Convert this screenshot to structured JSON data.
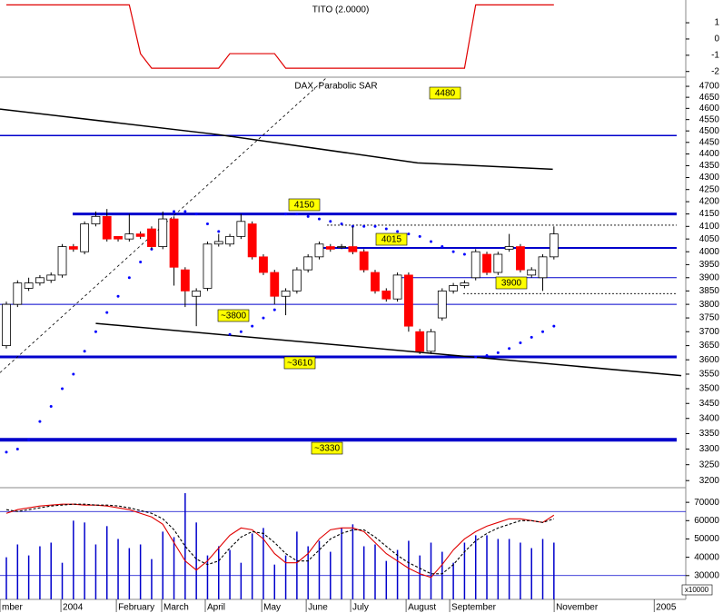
{
  "chart_data": [
    {
      "type": "line",
      "title": "TITO (2.0000)",
      "xlim": [
        -0.57,
        60.8
      ],
      "ylim": [
        -2.35,
        2.4
      ],
      "yticks": [
        1,
        0,
        -1,
        -2
      ],
      "series": [
        {
          "color": "#e00000",
          "values": [
            2.1,
            2.1,
            2.1,
            2.1,
            2.1,
            2.1,
            2.1,
            2.1,
            2.1,
            2.1,
            2.1,
            2.1,
            -0.9,
            -1.8,
            -1.8,
            -1.8,
            -1.8,
            -1.8,
            -1.8,
            -1.8,
            -0.9,
            -0.9,
            -0.9,
            -0.9,
            -0.9,
            -1.8,
            -1.8,
            -1.8,
            -1.8,
            -1.8,
            -1.8,
            -1.8,
            -1.8,
            -1.8,
            -1.8,
            -1.8,
            -1.8,
            -1.8,
            -1.8,
            -1.8,
            -1.8,
            -1.8,
            2.1,
            2.1,
            2.1,
            2.1,
            2.1,
            2.1,
            2.1,
            2.1
          ]
        }
      ]
    },
    {
      "type": "candlestick",
      "title": "DAX, Parabolic SAR",
      "xlim": [
        -0.57,
        60.8
      ],
      "ylim": [
        3178,
        4742
      ],
      "log_scale": true,
      "yticks": [
        4700,
        4650,
        4600,
        4550,
        4500,
        4450,
        4400,
        4350,
        4300,
        4250,
        4200,
        4150,
        4100,
        4050,
        4000,
        3950,
        3900,
        3850,
        3800,
        3750,
        3700,
        3650,
        3600,
        3550,
        3500,
        3450,
        3400,
        3350,
        3300,
        3250,
        3200
      ],
      "up_color": "#ffffff",
      "down_color": "#ff0000",
      "open": [
        3650,
        3800,
        3860,
        3880,
        3890,
        3910,
        4020,
        4000,
        4110,
        4140,
        4060,
        4050,
        4070,
        4090,
        4020,
        4130,
        3930,
        3830,
        3860,
        4030,
        4030,
        4060,
        4110,
        3980,
        3920,
        3830,
        3850,
        3930,
        3980,
        4020,
        4020,
        4020,
        4000,
        3920,
        3850,
        3820,
        3910,
        3700,
        3630,
        3750,
        3850,
        3870,
        3900,
        3990,
        3920,
        4010,
        4020,
        3910,
        3900,
        3980
      ],
      "high": [
        3810,
        3890,
        3900,
        3910,
        3920,
        4030,
        4030,
        4120,
        4160,
        4170,
        4060,
        4150,
        4080,
        4100,
        4160,
        4140,
        3940,
        3860,
        4040,
        4070,
        4070,
        4150,
        4120,
        3990,
        3930,
        3860,
        3940,
        3990,
        4040,
        4030,
        4030,
        4100,
        4010,
        3930,
        3860,
        3920,
        3920,
        3710,
        3710,
        3860,
        3880,
        3890,
        4010,
        4000,
        4000,
        4070,
        4030,
        3940,
        3990,
        4100
      ],
      "low": [
        3640,
        3790,
        3850,
        3870,
        3880,
        3900,
        4000,
        3990,
        4100,
        4040,
        4040,
        4040,
        4050,
        4010,
        4010,
        3870,
        3790,
        3720,
        3850,
        4020,
        4020,
        4050,
        3970,
        3910,
        3800,
        3760,
        3840,
        3920,
        3970,
        4000,
        4010,
        3990,
        3920,
        3840,
        3810,
        3810,
        3700,
        3620,
        3620,
        3740,
        3840,
        3860,
        3890,
        3910,
        3910,
        4000,
        3920,
        3900,
        3850,
        3970
      ],
      "close": [
        3800,
        3880,
        3880,
        3900,
        3910,
        4020,
        4010,
        4110,
        4140,
        4050,
        4050,
        4070,
        4060,
        4020,
        4130,
        3940,
        3850,
        3850,
        4030,
        4040,
        4060,
        4120,
        3980,
        3920,
        3830,
        3850,
        3930,
        3980,
        4030,
        4010,
        4020,
        4000,
        3930,
        3850,
        3820,
        3910,
        3720,
        3630,
        3700,
        3850,
        3870,
        3880,
        4000,
        3920,
        3990,
        4020,
        3930,
        3930,
        3980,
        4070
      ],
      "sar": {
        "color": "#0000ff",
        "values": [
          3290,
          3300,
          3330,
          3390,
          3440,
          3500,
          3550,
          3630,
          3700,
          3770,
          3830,
          3900,
          3960,
          4010,
          4050,
          4160,
          4160,
          4150,
          4110,
          4080,
          3690,
          3700,
          3720,
          3750,
          3780,
          4150,
          4150,
          4140,
          4130,
          4120,
          4110,
          4100,
          4100,
          4100,
          4090,
          4080,
          4070,
          4060,
          4040,
          4020,
          4000,
          3990,
          3610,
          3615,
          3625,
          3640,
          3660,
          3680,
          3700,
          3720
        ]
      },
      "trend_lines": [
        {
          "color": "#000000",
          "style": "solid",
          "x": [
            -0.57,
            18.94,
            36.8,
            48.9
          ],
          "values": [
            4597,
            4484,
            4362,
            4335
          ]
        },
        {
          "color": "#000000",
          "style": "solid",
          "x": [
            8,
            60.4
          ],
          "values": [
            3730,
            3545
          ]
        },
        {
          "color": "#000000",
          "style": "dashed",
          "x": [
            -0.57,
            28.7
          ],
          "values": [
            3555,
            4742
          ]
        }
      ],
      "levels": [
        {
          "value": 4480,
          "label": "4480"
        },
        {
          "value": 4150,
          "label": "4150"
        },
        {
          "value": 4015,
          "label": "4015"
        },
        {
          "value": 3900,
          "label": "3900"
        },
        {
          "value": 3800,
          "label": "~3800"
        },
        {
          "value": 3610,
          "label": "~3610"
        },
        {
          "value": 3330,
          "label": "~3330"
        }
      ],
      "level_color": "#0000cc",
      "label_color": "#ffff00",
      "reference_lines": [
        4105,
        3840
      ]
    },
    {
      "type": "combo",
      "xlim": [
        -0.57,
        60.8
      ],
      "ylim": [
        17000,
        78000
      ],
      "yticks": [
        70000,
        60000,
        50000,
        40000,
        30000
      ],
      "xticks": [
        {
          "value": -0.57,
          "label": "mber"
        },
        {
          "value": 4.88,
          "label": "2004"
        },
        {
          "value": 9.84,
          "label": "February"
        },
        {
          "value": 13.9,
          "label": "March"
        },
        {
          "value": 17.8,
          "label": "April"
        },
        {
          "value": 22.85,
          "label": "May"
        },
        {
          "value": 26.83,
          "label": "June"
        },
        {
          "value": 30.81,
          "label": "July"
        },
        {
          "value": 35.77,
          "label": "August"
        },
        {
          "value": 39.67,
          "label": "September"
        },
        {
          "value": 49.02,
          "label": "November"
        },
        {
          "value": 57.97,
          "label": "2005"
        }
      ],
      "volume": {
        "color": "#0000cc",
        "values": [
          40000,
          47000,
          41000,
          46000,
          48000,
          37000,
          60000,
          59000,
          47000,
          57000,
          50000,
          45000,
          47000,
          39000,
          54000,
          51000,
          75000,
          59000,
          41000,
          46000,
          44000,
          37000,
          53000,
          56000,
          36000,
          41000,
          54000,
          46000,
          49000,
          43000,
          56000,
          58000,
          46000,
          47000,
          38000,
          44000,
          49000,
          41000,
          48000,
          43000,
          37000,
          48000,
          52000,
          52000,
          50000,
          50000,
          48000,
          45000,
          50000,
          48000
        ]
      },
      "series": [
        {
          "color": "#e00000",
          "style": "solid",
          "values": [
            64000,
            66000,
            67000,
            68000,
            68500,
            69000,
            69000,
            68500,
            68500,
            68000,
            67000,
            66000,
            64000,
            62000,
            58000,
            48000,
            38000,
            33000,
            38000,
            45000,
            52000,
            56000,
            55000,
            50000,
            42000,
            37000,
            37000,
            42000,
            50000,
            55000,
            56000,
            56000,
            54000,
            48000,
            42000,
            38000,
            34000,
            31000,
            29000,
            36000,
            44000,
            50000,
            54000,
            57000,
            59000,
            61000,
            61000,
            60000,
            59000,
            63000
          ]
        },
        {
          "color": "#000000",
          "style": "dashed",
          "values": [
            66000,
            65000,
            66000,
            67000,
            68000,
            68500,
            69000,
            69000,
            68500,
            68500,
            68000,
            67000,
            65500,
            64000,
            61000,
            55000,
            46000,
            39000,
            36000,
            38000,
            45000,
            51000,
            54000,
            53000,
            48000,
            42000,
            38000,
            38000,
            44000,
            50000,
            53000,
            55000,
            55000,
            51000,
            46000,
            41000,
            37000,
            34000,
            31000,
            31000,
            36000,
            43000,
            49000,
            53000,
            56000,
            58000,
            60000,
            60000,
            59000,
            61000
          ]
        }
      ],
      "levels": [
        65000,
        30000
      ],
      "level_color": "#0000cc",
      "unit_label": "x10000"
    }
  ]
}
